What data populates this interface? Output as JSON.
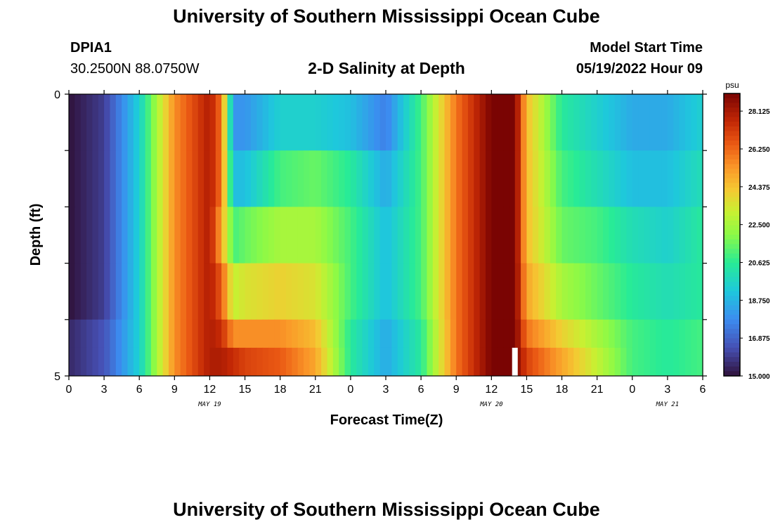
{
  "header": {
    "title": "University of Southern Mississippi Ocean Cube",
    "station_id": "DPIA1",
    "station_coords": "30.2500N  88.0750W",
    "plot_title": "2-D Salinity at Depth",
    "start_label": "Model Start Time",
    "start_value": "05/19/2022 Hour 09"
  },
  "footer": {
    "title": "University of Southern Mississippi Ocean Cube"
  },
  "chart_data": {
    "type": "heatmap",
    "title": "2-D Salinity at Depth",
    "xlabel": "Forecast Time(Z)",
    "ylabel": "Depth (ft)",
    "x_ticks": [
      "0",
      "3",
      "6",
      "9",
      "12",
      "15",
      "18",
      "21",
      "0",
      "3",
      "6",
      "9",
      "12",
      "15",
      "18",
      "21",
      "0",
      "3",
      "6"
    ],
    "date_labels": [
      {
        "text": "MAY 19",
        "tick_index": 4
      },
      {
        "text": "MAY 20",
        "tick_index": 12
      },
      {
        "text": "MAY 21",
        "tick_index": 17
      }
    ],
    "y_ticks": [
      "0",
      "5"
    ],
    "ylim": [
      0,
      5
    ],
    "colorbar": {
      "unit": "psu",
      "ticks": [
        "28.125",
        "26.250",
        "24.375",
        "22.500",
        "20.625",
        "18.750",
        "16.875",
        "15.000"
      ],
      "range": [
        15.0,
        29.0
      ]
    },
    "x_hours": [
      0,
      3,
      6,
      9,
      12,
      13,
      14,
      15,
      18,
      21,
      24,
      27,
      30,
      33,
      36,
      38,
      39,
      42,
      45,
      48,
      51,
      54
    ],
    "depth_rows": [
      {
        "depth": "0-1",
        "values": [
          15.0,
          16.0,
          19.5,
          25.5,
          28.0,
          26.0,
          18.0,
          18.0,
          19.5,
          19.5,
          19.0,
          17.5,
          21.0,
          26.0,
          29.0,
          29.0,
          24.5,
          20.5,
          19.5,
          18.5,
          18.5,
          19.5
        ]
      },
      {
        "depth": "1-2",
        "values": [
          15.0,
          16.0,
          19.5,
          25.5,
          28.0,
          26.0,
          19.0,
          19.0,
          21.0,
          21.5,
          20.5,
          18.5,
          21.0,
          26.0,
          29.0,
          29.0,
          24.5,
          21.0,
          20.0,
          19.0,
          19.0,
          20.0
        ]
      },
      {
        "depth": "2-3",
        "values": [
          15.0,
          16.0,
          19.5,
          25.5,
          28.0,
          25.0,
          21.0,
          21.5,
          22.5,
          22.5,
          21.0,
          19.0,
          21.0,
          26.0,
          29.0,
          29.0,
          24.5,
          21.5,
          21.0,
          20.0,
          19.5,
          20.5
        ]
      },
      {
        "depth": "3-4",
        "values": [
          15.0,
          16.0,
          19.5,
          25.5,
          28.0,
          26.5,
          23.0,
          23.5,
          24.0,
          23.5,
          21.0,
          19.0,
          21.0,
          26.0,
          29.0,
          29.0,
          25.0,
          22.5,
          21.5,
          20.5,
          20.0,
          20.5
        ]
      },
      {
        "depth": "4-4.5",
        "values": [
          15.5,
          16.5,
          19.5,
          25.5,
          28.0,
          27.5,
          25.5,
          25.5,
          25.5,
          24.5,
          20.5,
          18.5,
          20.5,
          26.0,
          29.0,
          29.0,
          26.0,
          24.0,
          22.5,
          21.0,
          20.5,
          21.0
        ]
      },
      {
        "depth": "4.5-5",
        "values": [
          15.5,
          16.5,
          19.5,
          25.5,
          28.0,
          28.0,
          27.5,
          27.0,
          26.5,
          25.0,
          20.5,
          18.5,
          20.5,
          26.0,
          29.0,
          29.0,
          27.0,
          25.0,
          23.0,
          21.0,
          20.5,
          21.0
        ]
      }
    ],
    "missing_cell": {
      "hour": 38,
      "depth": "4.5-5"
    }
  }
}
